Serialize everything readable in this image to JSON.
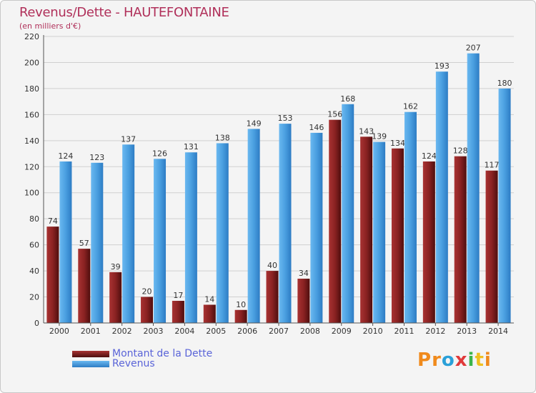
{
  "title": "Revenus/Dette - HAUTEFONTAINE",
  "subtitle": "(en milliers d'€)",
  "logo": {
    "text": "Proxiti",
    "letters": [
      "P",
      "r",
      "o",
      "x",
      "i",
      "t",
      "i"
    ],
    "colors": [
      "#f08a1c",
      "#f08a1c",
      "#2aa0d8",
      "#e03a3a",
      "#3cb44a",
      "#f0c020",
      "#f08a1c"
    ]
  },
  "colors": {
    "dette": "#7a1c1c",
    "revenus": "#4a9fe0",
    "grid": "#d0d0d0",
    "axis": "#555555",
    "label": "#333333"
  },
  "legend": [
    {
      "name": "Montant de la Dette",
      "color": "#7a1c1c"
    },
    {
      "name": "Revenus",
      "color": "#4a9fe0"
    }
  ],
  "chart_data": {
    "type": "bar",
    "title": "Revenus/Dette - HAUTEFONTAINE",
    "ylabel": "(en milliers d'€)",
    "xlabel": "",
    "ylim": [
      0,
      220
    ],
    "yticks": [
      0,
      20,
      40,
      60,
      80,
      100,
      120,
      140,
      160,
      180,
      200,
      220
    ],
    "grid": true,
    "categories": [
      "2000",
      "2001",
      "2002",
      "2003",
      "2004",
      "2005",
      "2006",
      "2007",
      "2008",
      "2009",
      "2010",
      "2011",
      "2012",
      "2013",
      "2014"
    ],
    "series": [
      {
        "name": "Montant de la Dette",
        "values": [
          74,
          57,
          39,
          20,
          17,
          14,
          10,
          40,
          34,
          156,
          143,
          134,
          124,
          128,
          117
        ]
      },
      {
        "name": "Revenus",
        "values": [
          124,
          123,
          137,
          126,
          131,
          138,
          149,
          153,
          146,
          168,
          139,
          162,
          193,
          207,
          180
        ]
      }
    ]
  }
}
